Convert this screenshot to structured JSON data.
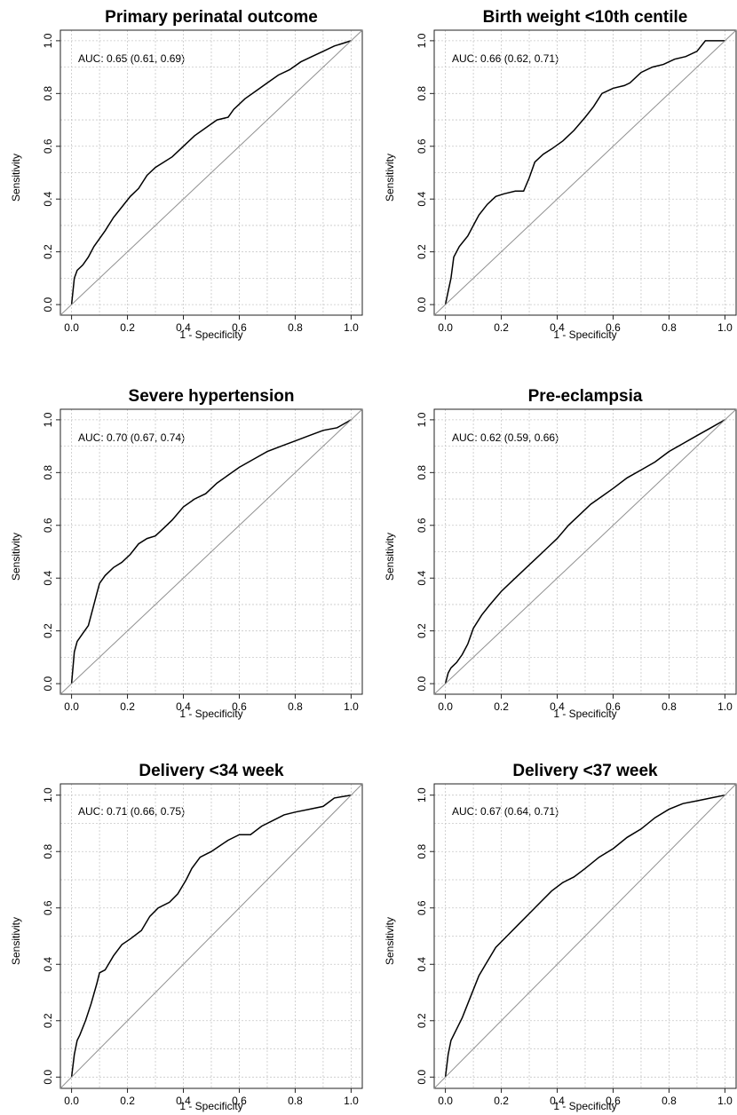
{
  "chart_data": [
    {
      "type": "line",
      "title": "Primary perinatal outcome",
      "xlabel": "1 - Specificity",
      "ylabel": "Sensitivity",
      "xlim": [
        -0.04,
        1.04
      ],
      "ylim": [
        -0.04,
        1.04
      ],
      "ticks": [
        "0.0",
        "0.2",
        "0.4",
        "0.6",
        "0.8",
        "1.0"
      ],
      "grid": true,
      "annotation": "AUC: 0.65 (0.61, 0.69)",
      "series": [
        {
          "x": [
            0,
            0.01,
            0.02,
            0.04,
            0.06,
            0.08,
            0.1,
            0.12,
            0.15,
            0.18,
            0.21,
            0.24,
            0.27,
            0.3,
            0.33,
            0.36,
            0.4,
            0.44,
            0.48,
            0.52,
            0.56,
            0.58,
            0.62,
            0.66,
            0.7,
            0.74,
            0.78,
            0.82,
            0.86,
            0.9,
            0.94,
            0.97,
            1.0
          ],
          "y": [
            0,
            0.1,
            0.13,
            0.15,
            0.18,
            0.22,
            0.25,
            0.28,
            0.33,
            0.37,
            0.41,
            0.44,
            0.49,
            0.52,
            0.54,
            0.56,
            0.6,
            0.64,
            0.67,
            0.7,
            0.71,
            0.74,
            0.78,
            0.81,
            0.84,
            0.87,
            0.89,
            0.92,
            0.94,
            0.96,
            0.98,
            0.99,
            1.0
          ]
        },
        {
          "x": [
            -0.04,
            1.04
          ],
          "y": [
            -0.04,
            1.04
          ]
        }
      ]
    },
    {
      "type": "line",
      "title": "Birth weight <10th centile",
      "xlabel": "1 - Specificity",
      "ylabel": "Sensitivity",
      "xlim": [
        -0.04,
        1.04
      ],
      "ylim": [
        -0.04,
        1.04
      ],
      "ticks": [
        "0.0",
        "0.2",
        "0.4",
        "0.6",
        "0.8",
        "1.0"
      ],
      "grid": true,
      "annotation": "AUC: 0.66 (0.62, 0.71)",
      "series": [
        {
          "x": [
            0,
            0.01,
            0.02,
            0.03,
            0.05,
            0.08,
            0.1,
            0.12,
            0.15,
            0.18,
            0.21,
            0.25,
            0.28,
            0.3,
            0.32,
            0.35,
            0.38,
            0.42,
            0.46,
            0.5,
            0.53,
            0.56,
            0.6,
            0.64,
            0.66,
            0.7,
            0.74,
            0.78,
            0.82,
            0.86,
            0.9,
            0.93,
            1.0
          ],
          "y": [
            0,
            0.05,
            0.1,
            0.18,
            0.22,
            0.26,
            0.3,
            0.34,
            0.38,
            0.41,
            0.42,
            0.43,
            0.43,
            0.48,
            0.54,
            0.57,
            0.59,
            0.62,
            0.66,
            0.71,
            0.75,
            0.8,
            0.82,
            0.83,
            0.84,
            0.88,
            0.9,
            0.91,
            0.93,
            0.94,
            0.96,
            1.0,
            1.0
          ]
        },
        {
          "x": [
            -0.04,
            1.04
          ],
          "y": [
            -0.04,
            1.04
          ]
        }
      ]
    },
    {
      "type": "line",
      "title": "Severe hypertension",
      "xlabel": "1 - Specificity",
      "ylabel": "Sensitivity",
      "xlim": [
        -0.04,
        1.04
      ],
      "ylim": [
        -0.04,
        1.04
      ],
      "ticks": [
        "0.0",
        "0.2",
        "0.4",
        "0.6",
        "0.8",
        "1.0"
      ],
      "grid": true,
      "annotation": "AUC: 0.70 (0.67, 0.74)",
      "series": [
        {
          "x": [
            0,
            0.01,
            0.02,
            0.04,
            0.06,
            0.08,
            0.09,
            0.1,
            0.12,
            0.15,
            0.18,
            0.21,
            0.24,
            0.27,
            0.3,
            0.33,
            0.36,
            0.4,
            0.44,
            0.48,
            0.52,
            0.56,
            0.6,
            0.65,
            0.7,
            0.75,
            0.8,
            0.85,
            0.9,
            0.95,
            1.0
          ],
          "y": [
            0,
            0.12,
            0.16,
            0.19,
            0.22,
            0.3,
            0.34,
            0.38,
            0.41,
            0.44,
            0.46,
            0.49,
            0.53,
            0.55,
            0.56,
            0.59,
            0.62,
            0.67,
            0.7,
            0.72,
            0.76,
            0.79,
            0.82,
            0.85,
            0.88,
            0.9,
            0.92,
            0.94,
            0.96,
            0.97,
            1.0
          ]
        },
        {
          "x": [
            -0.04,
            1.04
          ],
          "y": [
            -0.04,
            1.04
          ]
        }
      ]
    },
    {
      "type": "line",
      "title": "Pre-eclampsia",
      "xlabel": "1 - Specificity",
      "ylabel": "Sensitivity",
      "xlim": [
        -0.04,
        1.04
      ],
      "ylim": [
        -0.04,
        1.04
      ],
      "ticks": [
        "0.0",
        "0.2",
        "0.4",
        "0.6",
        "0.8",
        "1.0"
      ],
      "grid": true,
      "annotation": "AUC: 0.62 (0.59, 0.66)",
      "series": [
        {
          "x": [
            0,
            0.01,
            0.02,
            0.04,
            0.06,
            0.08,
            0.1,
            0.13,
            0.16,
            0.2,
            0.24,
            0.28,
            0.32,
            0.36,
            0.4,
            0.44,
            0.48,
            0.52,
            0.56,
            0.6,
            0.65,
            0.7,
            0.75,
            0.8,
            0.85,
            0.9,
            0.95,
            1.0
          ],
          "y": [
            0,
            0.04,
            0.06,
            0.08,
            0.11,
            0.15,
            0.21,
            0.26,
            0.3,
            0.35,
            0.39,
            0.43,
            0.47,
            0.51,
            0.55,
            0.6,
            0.64,
            0.68,
            0.71,
            0.74,
            0.78,
            0.81,
            0.84,
            0.88,
            0.91,
            0.94,
            0.97,
            1.0
          ]
        },
        {
          "x": [
            -0.04,
            1.04
          ],
          "y": [
            -0.04,
            1.04
          ]
        }
      ]
    },
    {
      "type": "line",
      "title": "Delivery <34 week",
      "xlabel": "1 - Specificity",
      "ylabel": "Sensitivity",
      "xlim": [
        -0.04,
        1.04
      ],
      "ylim": [
        -0.04,
        1.04
      ],
      "ticks": [
        "0.0",
        "0.2",
        "0.4",
        "0.6",
        "0.8",
        "1.0"
      ],
      "grid": true,
      "annotation": "AUC: 0.71 (0.66, 0.75)",
      "series": [
        {
          "x": [
            0,
            0.01,
            0.02,
            0.03,
            0.05,
            0.07,
            0.09,
            0.1,
            0.12,
            0.15,
            0.18,
            0.21,
            0.25,
            0.28,
            0.31,
            0.35,
            0.38,
            0.41,
            0.43,
            0.46,
            0.5,
            0.53,
            0.56,
            0.6,
            0.64,
            0.68,
            0.72,
            0.76,
            0.8,
            0.85,
            0.9,
            0.94,
            1.0
          ],
          "y": [
            0,
            0.08,
            0.13,
            0.15,
            0.2,
            0.26,
            0.33,
            0.37,
            0.38,
            0.43,
            0.47,
            0.49,
            0.52,
            0.57,
            0.6,
            0.62,
            0.65,
            0.7,
            0.74,
            0.78,
            0.8,
            0.82,
            0.84,
            0.86,
            0.86,
            0.89,
            0.91,
            0.93,
            0.94,
            0.95,
            0.96,
            0.99,
            1.0
          ]
        },
        {
          "x": [
            -0.04,
            1.04
          ],
          "y": [
            -0.04,
            1.04
          ]
        }
      ]
    },
    {
      "type": "line",
      "title": "Delivery <37 week",
      "xlabel": "1 - Specificity",
      "ylabel": "Sensitivity",
      "xlim": [
        -0.04,
        1.04
      ],
      "ylim": [
        -0.04,
        1.04
      ],
      "ticks": [
        "0.0",
        "0.2",
        "0.4",
        "0.6",
        "0.8",
        "1.0"
      ],
      "grid": true,
      "annotation": "AUC: 0.67 (0.64, 0.71)",
      "series": [
        {
          "x": [
            0,
            0.01,
            0.02,
            0.04,
            0.06,
            0.08,
            0.1,
            0.12,
            0.15,
            0.18,
            0.22,
            0.26,
            0.3,
            0.34,
            0.38,
            0.42,
            0.46,
            0.5,
            0.55,
            0.6,
            0.65,
            0.7,
            0.75,
            0.8,
            0.85,
            0.9,
            0.95,
            1.0
          ],
          "y": [
            0,
            0.08,
            0.13,
            0.17,
            0.21,
            0.26,
            0.31,
            0.36,
            0.41,
            0.46,
            0.5,
            0.54,
            0.58,
            0.62,
            0.66,
            0.69,
            0.71,
            0.74,
            0.78,
            0.81,
            0.85,
            0.88,
            0.92,
            0.95,
            0.97,
            0.98,
            0.99,
            1.0
          ]
        },
        {
          "x": [
            -0.04,
            1.04
          ],
          "y": [
            -0.04,
            1.04
          ]
        }
      ]
    }
  ]
}
